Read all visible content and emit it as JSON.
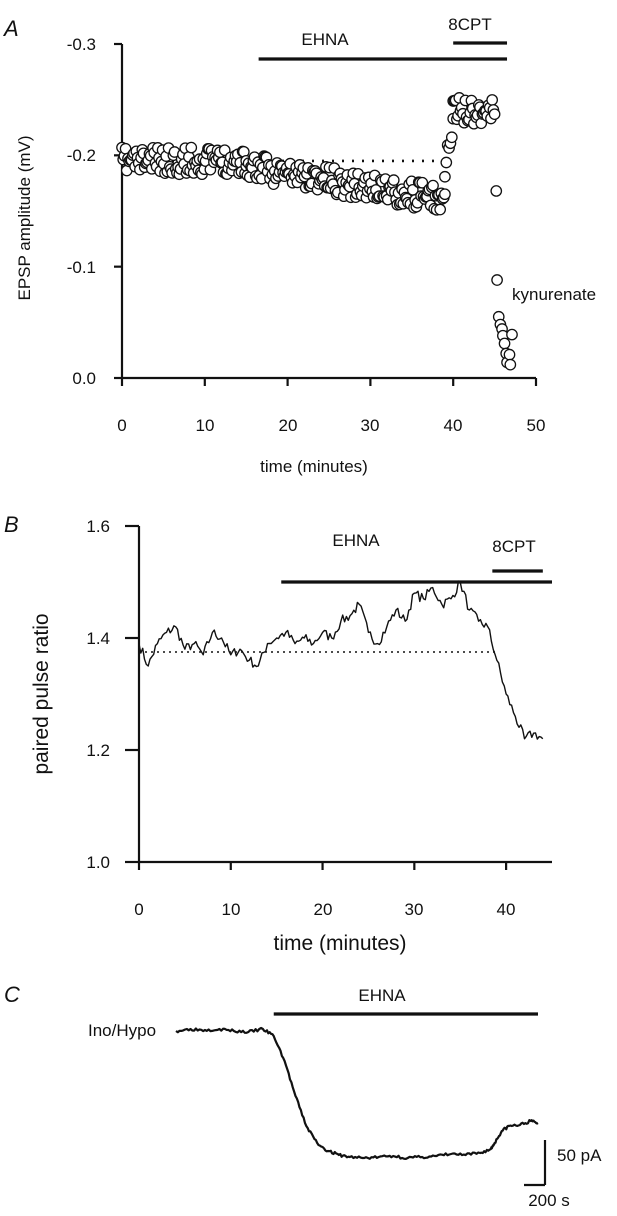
{
  "panels": {
    "a": "A",
    "b": "B",
    "c": "C"
  },
  "chart_data": [
    {
      "type": "scatter",
      "panel": "A",
      "xlabel": "time (minutes)",
      "ylabel": "EPSP amplitude (mV)",
      "xlim": [
        0,
        50
      ],
      "ylim": [
        0.0,
        -0.3
      ],
      "y_axis_inverted": true,
      "x_ticks": [
        "0",
        "10",
        "20",
        "30",
        "40",
        "50"
      ],
      "y_ticks": [
        "0.0",
        "-0.1",
        "-0.2",
        "-0.3"
      ],
      "marker": "open-circle",
      "baseline": {
        "value": -0.195,
        "x_range": [
          0,
          39
        ],
        "style": "dotted"
      },
      "bars": [
        {
          "label": "EHNA",
          "x_range": [
            16.5,
            46.5
          ]
        },
        {
          "label": "8CPT",
          "x_range": [
            40,
            46.5
          ]
        }
      ],
      "annotations": [
        {
          "text": "kynurenate"
        }
      ],
      "segments": [
        {
          "x_range": [
            0,
            15
          ],
          "mean": -0.195,
          "jitter": 0.012
        },
        {
          "x_range": [
            15,
            39
          ],
          "start": -0.19,
          "end": -0.16,
          "jitter": 0.012
        },
        {
          "x_range": [
            39,
            40
          ],
          "start": -0.19,
          "end": -0.225,
          "jitter": 0.01
        },
        {
          "x_range": [
            40,
            45
          ],
          "mean": -0.24,
          "jitter": 0.012
        }
      ],
      "points": [
        {
          "x": 45.2,
          "y": -0.168
        },
        {
          "x": 45.3,
          "y": -0.088
        },
        {
          "x": 45.5,
          "y": -0.055
        },
        {
          "x": 45.7,
          "y": -0.048
        },
        {
          "x": 45.9,
          "y": -0.044
        },
        {
          "x": 46.0,
          "y": -0.038
        },
        {
          "x": 46.2,
          "y": -0.031
        },
        {
          "x": 46.4,
          "y": -0.022
        },
        {
          "x": 46.5,
          "y": -0.014
        },
        {
          "x": 46.8,
          "y": -0.021
        },
        {
          "x": 46.9,
          "y": -0.012
        },
        {
          "x": 47.1,
          "y": -0.039
        }
      ]
    },
    {
      "type": "line",
      "panel": "B",
      "xlabel": "time (minutes)",
      "ylabel": "paired pulse ratio",
      "xlim": [
        0,
        45
      ],
      "ylim": [
        1.0,
        1.6
      ],
      "x_ticks": [
        "0",
        "10",
        "20",
        "30",
        "40"
      ],
      "y_ticks": [
        "1.0",
        "1.2",
        "1.4",
        "1.6"
      ],
      "baseline": {
        "value": 1.375,
        "x_range": [
          0,
          39
        ],
        "style": "dotted"
      },
      "bars": [
        {
          "label": "EHNA",
          "x_range": [
            15.5,
            45
          ]
        },
        {
          "label": "8CPT",
          "x_range": [
            38.5,
            44
          ]
        }
      ],
      "x": [
        0,
        1,
        2,
        3,
        4,
        5,
        6,
        7,
        8,
        9,
        10,
        11,
        12,
        13,
        14,
        15,
        16,
        17,
        18,
        19,
        20,
        21,
        22,
        23,
        24,
        25,
        26,
        27,
        28,
        29,
        30,
        31,
        32,
        33,
        34,
        35,
        36,
        37,
        38,
        39,
        40,
        41,
        42,
        43,
        44
      ],
      "values": [
        1.39,
        1.35,
        1.39,
        1.41,
        1.42,
        1.38,
        1.39,
        1.37,
        1.41,
        1.4,
        1.37,
        1.38,
        1.36,
        1.35,
        1.39,
        1.4,
        1.41,
        1.39,
        1.4,
        1.39,
        1.41,
        1.4,
        1.43,
        1.44,
        1.46,
        1.41,
        1.39,
        1.42,
        1.45,
        1.43,
        1.48,
        1.47,
        1.49,
        1.46,
        1.47,
        1.5,
        1.45,
        1.43,
        1.42,
        1.36,
        1.3,
        1.26,
        1.22,
        1.23,
        1.22
      ]
    },
    {
      "type": "line",
      "panel": "C",
      "trace_label": "Ino/Hypo",
      "bars": [
        {
          "label": "EHNA",
          "x_range": [
            0.27,
            1.0
          ]
        }
      ],
      "scale_bar": {
        "y_label": "50 pA",
        "x_label": "200 s"
      },
      "x": [
        0.0,
        0.04,
        0.08,
        0.12,
        0.16,
        0.2,
        0.24,
        0.27,
        0.3,
        0.33,
        0.36,
        0.39,
        0.42,
        0.45,
        0.48,
        0.52,
        0.56,
        0.6,
        0.64,
        0.68,
        0.72,
        0.76,
        0.8,
        0.84,
        0.87,
        0.88,
        0.9,
        0.92,
        0.95,
        0.98,
        1.0
      ],
      "values": [
        0,
        2,
        1,
        2,
        0,
        -1,
        2,
        -5,
        -30,
        -65,
        -95,
        -112,
        -120,
        -124,
        -126,
        -127,
        -126,
        -125,
        -127,
        -126,
        -125,
        -123,
        -124,
        -122,
        -118,
        -112,
        -100,
        -95,
        -94,
        -90,
        -92
      ]
    }
  ]
}
